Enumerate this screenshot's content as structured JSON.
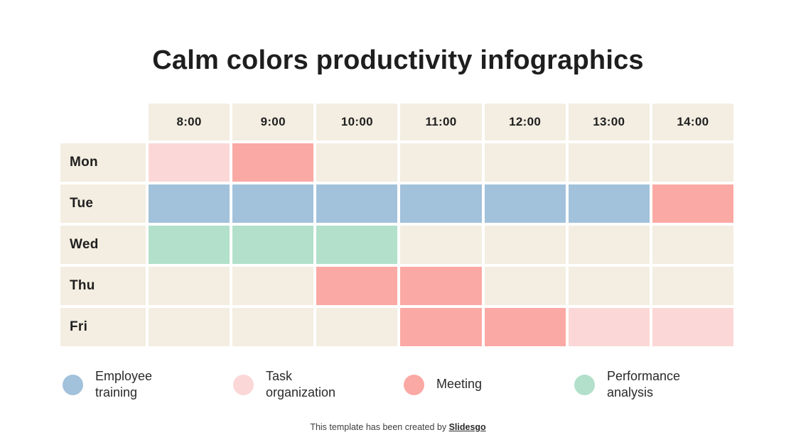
{
  "title": "Calm colors productivity infographics",
  "colors": {
    "employee_training": "#a2c1db",
    "task_organization": "#fcd7d7",
    "meeting": "#fba9a4",
    "performance_analysis": "#b2e0cb",
    "empty": "#f3eee1",
    "header": "#f3eee1",
    "title_text": "#1e1e1e"
  },
  "chart_data": {
    "type": "table",
    "title": "Calm colors productivity infographics",
    "columns": [
      "8:00",
      "9:00",
      "10:00",
      "11:00",
      "12:00",
      "13:00",
      "14:00"
    ],
    "rows": [
      {
        "day": "Mon",
        "cells": [
          "task_organization",
          "meeting",
          "empty",
          "empty",
          "empty",
          "empty",
          "empty"
        ]
      },
      {
        "day": "Tue",
        "cells": [
          "employee_training",
          "employee_training",
          "employee_training",
          "employee_training",
          "employee_training",
          "employee_training",
          "meeting"
        ]
      },
      {
        "day": "Wed",
        "cells": [
          "performance_analysis",
          "performance_analysis",
          "performance_analysis",
          "empty",
          "empty",
          "empty",
          "empty"
        ]
      },
      {
        "day": "Thu",
        "cells": [
          "empty",
          "empty",
          "meeting",
          "meeting",
          "empty",
          "empty",
          "empty"
        ]
      },
      {
        "day": "Fri",
        "cells": [
          "empty",
          "empty",
          "empty",
          "meeting",
          "meeting",
          "task_organization",
          "task_organization"
        ]
      }
    ],
    "legend_position": "bottom",
    "grid": "off"
  },
  "legend": [
    {
      "label": "Employee training",
      "key": "employee_training"
    },
    {
      "label": "Task organization",
      "key": "task_organization"
    },
    {
      "label": "Meeting",
      "key": "meeting"
    },
    {
      "label": "Performance analysis",
      "key": "performance_analysis"
    }
  ],
  "footer": {
    "text": "This template has been created by ",
    "brand": "Slidesgo"
  }
}
